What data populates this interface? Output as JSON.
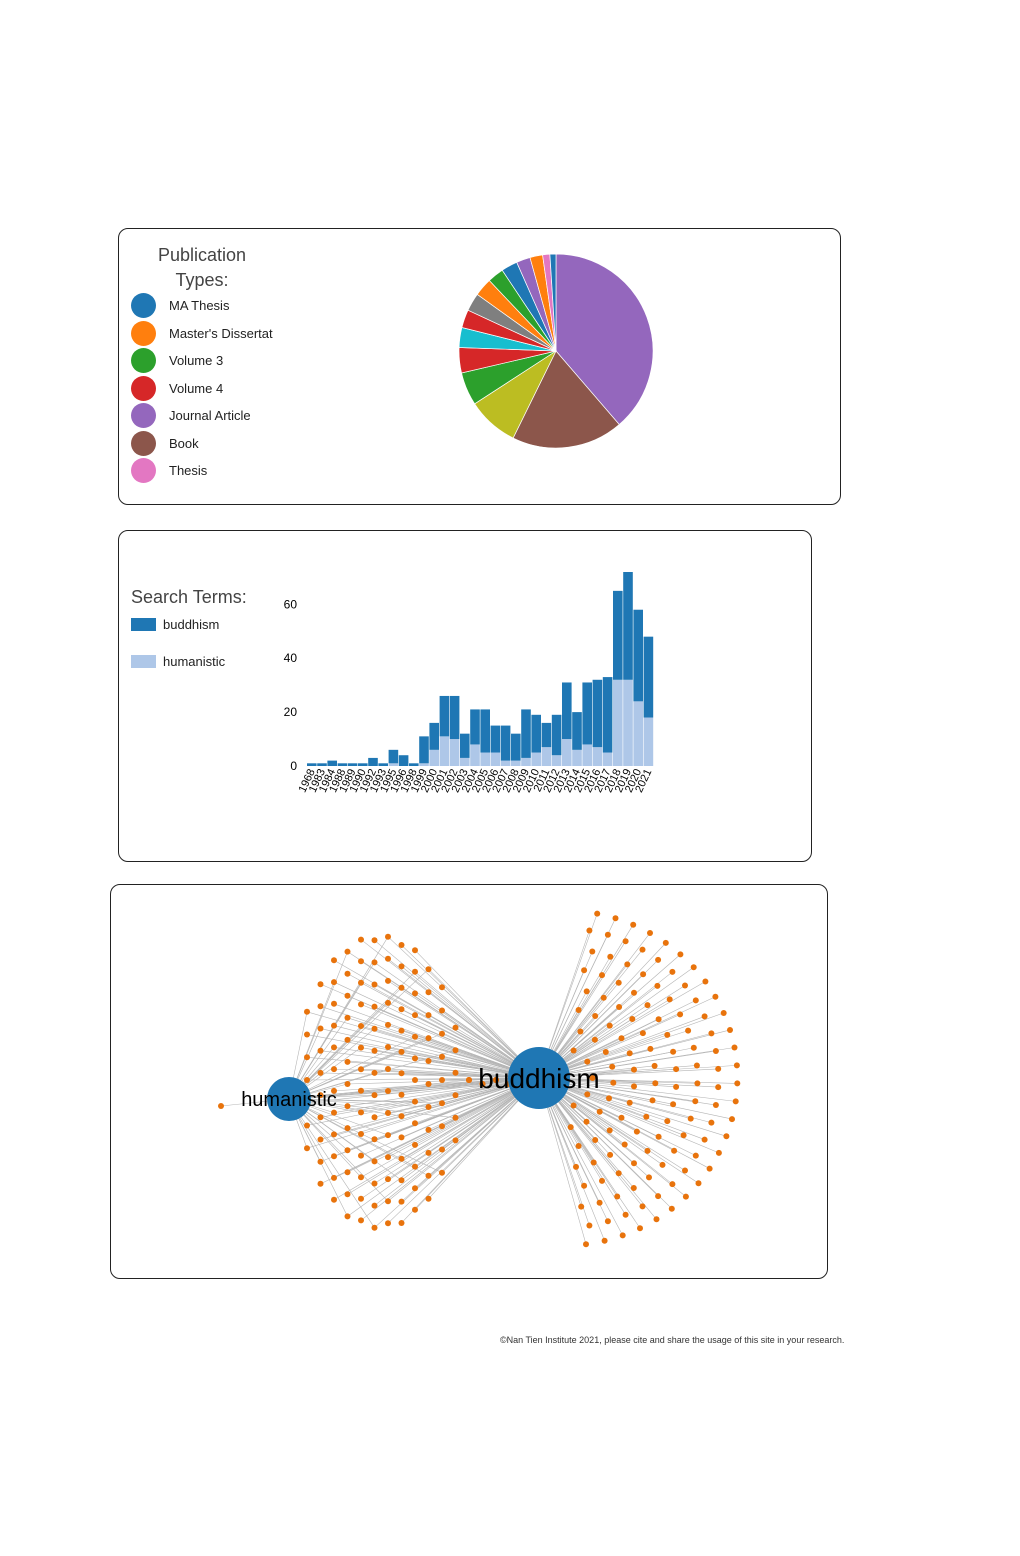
{
  "pie_legend": {
    "title_line1": "Publication",
    "title_line2": "Types:",
    "items": [
      {
        "label": "MA Thesis",
        "color": "#1f77b4"
      },
      {
        "label": "Master's Dissertati",
        "color": "#ff7f0e"
      },
      {
        "label": "Volume 3",
        "color": "#2ca02c"
      },
      {
        "label": "Volume 4",
        "color": "#d62728"
      },
      {
        "label": "Journal Article",
        "color": "#9467bd"
      },
      {
        "label": "Book",
        "color": "#8c564b"
      },
      {
        "label": "Thesis",
        "color": "#e377c2"
      }
    ]
  },
  "bar_legend": {
    "title": "Search Terms:",
    "items": [
      {
        "label": "buddhism",
        "color": "#1f77b4"
      },
      {
        "label": "humanistic",
        "color": "#aec7e8"
      }
    ]
  },
  "network": {
    "nodes": [
      {
        "label": "buddhism",
        "color": "#1f77b4"
      },
      {
        "label": "humanistic",
        "color": "#1f77b4"
      }
    ],
    "leaf_color": "#e8730c",
    "link_color": "#b5b5b5"
  },
  "footer": {
    "text": "©Nan Tien Institute 2021, please cite and share the usage of this site in your research."
  },
  "chart_data": [
    {
      "type": "pie",
      "title": "",
      "slices": [
        {
          "color": "#9467bd",
          "value": 38.5
        },
        {
          "color": "#8c564b",
          "value": 18.5
        },
        {
          "color": "#bcbd22",
          "value": 8.5
        },
        {
          "color": "#2ca02c",
          "value": 5.5
        },
        {
          "color": "#d62728",
          "value": 4.2
        },
        {
          "color": "#17becf",
          "value": 3.3
        },
        {
          "color": "#d62728",
          "value": 3.0
        },
        {
          "color": "#7f7f7f",
          "value": 3.0
        },
        {
          "color": "#ff7f0e",
          "value": 3.0
        },
        {
          "color": "#2ca02c",
          "value": 2.7
        },
        {
          "color": "#1f77b4",
          "value": 2.7
        },
        {
          "color": "#9467bd",
          "value": 2.3
        },
        {
          "color": "#ff7f0e",
          "value": 2.1
        },
        {
          "color": "#e377c2",
          "value": 1.2
        },
        {
          "color": "#1f77b4",
          "value": 1.0
        }
      ]
    },
    {
      "type": "bar",
      "stacked": true,
      "title": "",
      "xlabel": "",
      "ylabel": "",
      "ylim": [
        0,
        72
      ],
      "yticks": [
        0,
        20,
        40,
        60
      ],
      "categories": [
        "1968",
        "1983",
        "1984",
        "1988",
        "1989",
        "1990",
        "1992",
        "1993",
        "1995",
        "1996",
        "1998",
        "1999",
        "2000",
        "2001",
        "2002",
        "2003",
        "2004",
        "2005",
        "2006",
        "2007",
        "2008",
        "2009",
        "2010",
        "2011",
        "2012",
        "2013",
        "2014",
        "2015",
        "2016",
        "2017",
        "2018",
        "2019",
        "2020",
        "2021"
      ],
      "series": [
        {
          "name": "humanistic",
          "color": "#aec7e8",
          "values": [
            0,
            0,
            0,
            0,
            0,
            0,
            0,
            0,
            1,
            0,
            0,
            1,
            6,
            11,
            10,
            3,
            8,
            5,
            5,
            2,
            2,
            3,
            5,
            7,
            4,
            10,
            6,
            8,
            7,
            5,
            32,
            32,
            24,
            18
          ]
        },
        {
          "name": "buddhism",
          "color": "#1f77b4",
          "values": [
            1,
            1,
            2,
            1,
            1,
            1,
            3,
            1,
            5,
            4,
            1,
            10,
            10,
            15,
            16,
            9,
            13,
            16,
            10,
            13,
            10,
            18,
            14,
            9,
            15,
            21,
            14,
            23,
            25,
            28,
            33,
            40,
            34,
            30
          ]
        }
      ]
    }
  ]
}
